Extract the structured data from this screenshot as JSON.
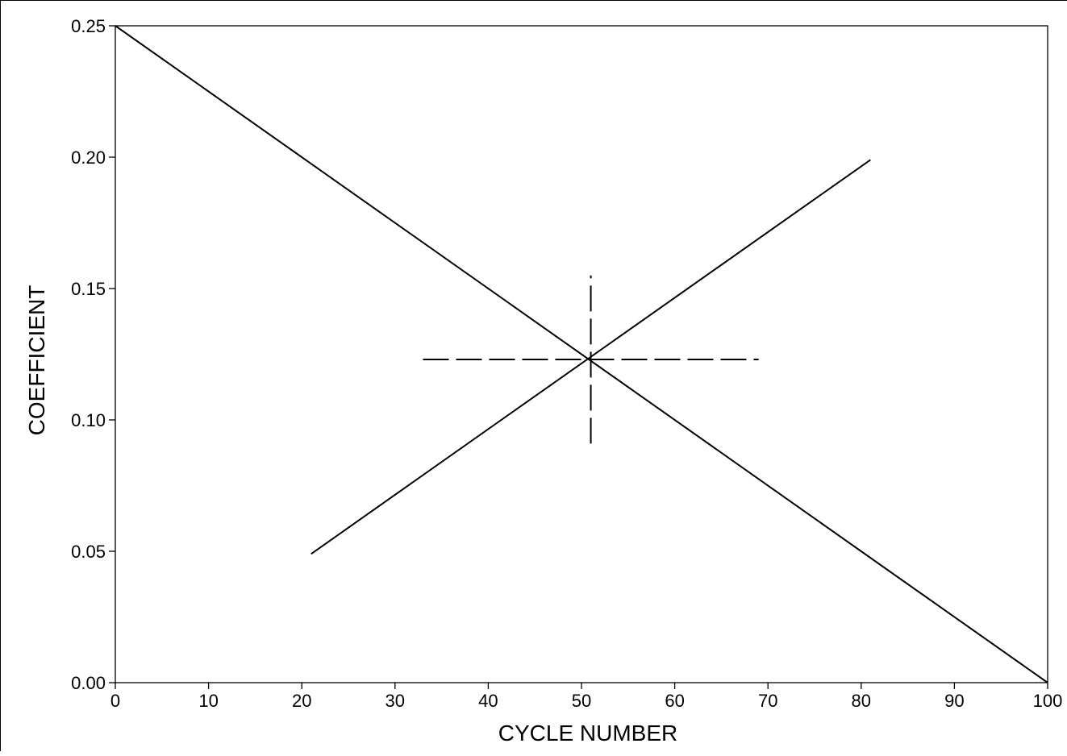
{
  "chart_data": {
    "type": "line",
    "title": "",
    "xlabel": "CYCLE NUMBER",
    "ylabel": "COEFFICIENT",
    "xlim": [
      0,
      100
    ],
    "ylim": [
      0,
      0.25
    ],
    "x_ticks": [
      0,
      10,
      20,
      30,
      40,
      50,
      60,
      70,
      80,
      90,
      100
    ],
    "x_tick_labels": [
      "0",
      "10",
      "20",
      "30",
      "40",
      "50",
      "60",
      "70",
      "80",
      "90",
      "100"
    ],
    "y_ticks": [
      0,
      0.05,
      0.1,
      0.15,
      0.2,
      0.25
    ],
    "y_tick_labels": [
      "0.00",
      "0.05",
      "0.10",
      "0.15",
      "0.20",
      "0.25"
    ],
    "grid": false,
    "legend": false,
    "line_color": "#000000",
    "series": [
      {
        "style": "solid",
        "x": [
          0,
          100
        ],
        "y": [
          0.25,
          0.0
        ]
      },
      {
        "style": "solid",
        "x": [
          21,
          81
        ],
        "y": [
          0.049,
          0.199
        ]
      },
      {
        "style": "dashed",
        "x": [
          33,
          69
        ],
        "y": [
          0.123,
          0.123
        ]
      },
      {
        "style": "dashed",
        "x": [
          51,
          51
        ],
        "y": [
          0.091,
          0.155
        ]
      }
    ]
  }
}
